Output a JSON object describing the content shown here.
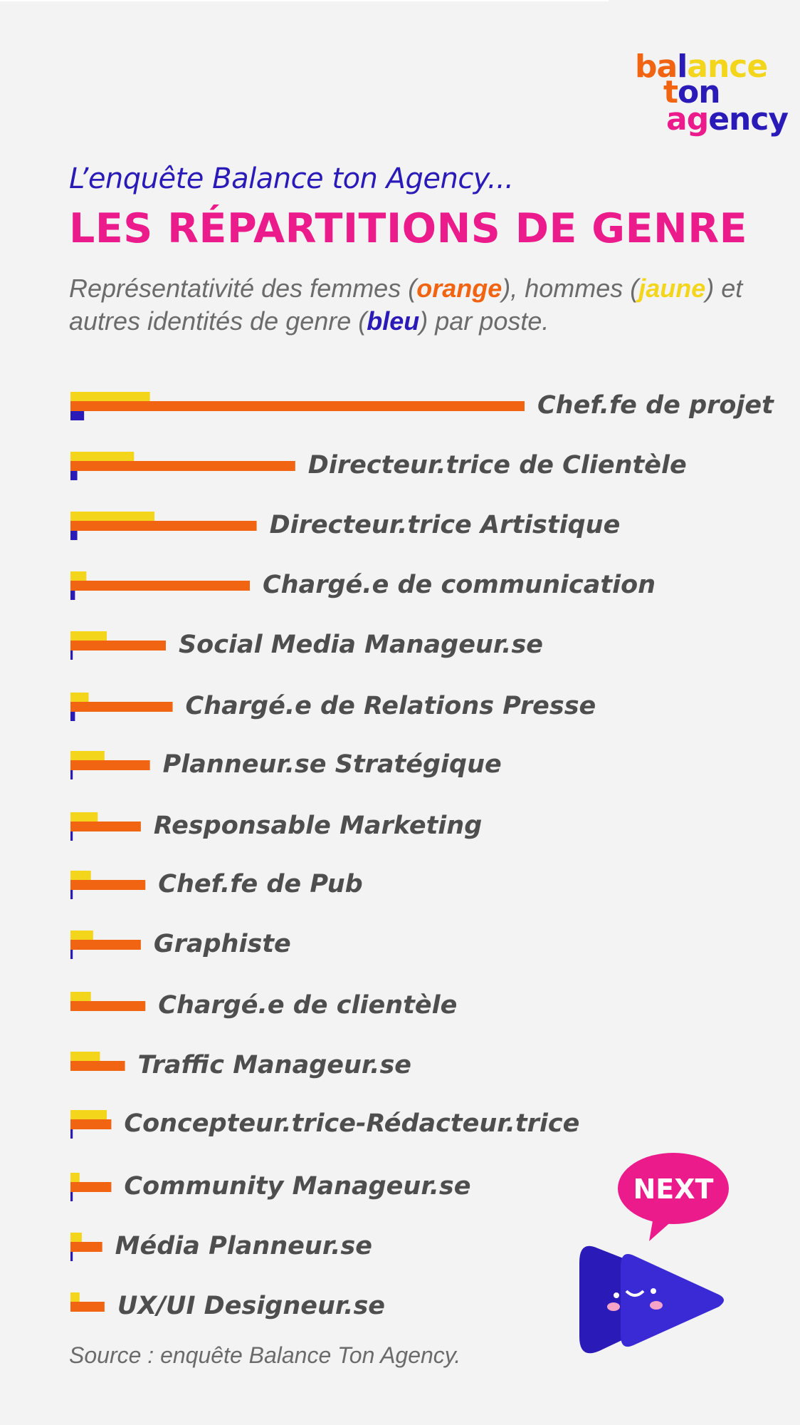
{
  "logo": {
    "lines": [
      "balance",
      "ton",
      "agency"
    ],
    "colors": {
      "orange": "#f06412",
      "yellow": "#f3d61c",
      "blue": "#2a1bb8",
      "pink": "#ec1b8c"
    }
  },
  "header": {
    "subtitle": "L’enquête Balance ton Agency...",
    "title": "LES RÉPARTITIONS DE GENRE",
    "description_parts": [
      "Représentativité des femmes (",
      "orange",
      "), hommes (",
      "jaune",
      ") et autres identités de genre (",
      "bleu",
      ") par poste."
    ]
  },
  "chart_data": {
    "type": "bar",
    "orientation": "horizontal",
    "series": [
      {
        "name": "femmes",
        "color": "#f06412"
      },
      {
        "name": "hommes",
        "color": "#f3d61c"
      },
      {
        "name": "autres identités de genre",
        "color": "#2a1bb8"
      }
    ],
    "categories": [
      "Chef.fe de projet",
      "Directeur.trice de Clientèle",
      "Directeur.trice Artistique",
      "Chargé.e de communication",
      "Social Media Manageur.se",
      "Chargé.e de Relations Presse",
      "Planneur.se Stratégique",
      "Responsable Marketing",
      "Chef.fe de Pub",
      "Graphiste",
      "Chargé.e de clientèle",
      "Traffic Manageur.se",
      "Concepteur.trice-Rédacteur.trice",
      "Community Manageur.se",
      "Média Planneur.se",
      "UX/UI Designeur.se"
    ],
    "values_femmes": [
      100,
      49.5,
      41,
      39.5,
      21,
      22.5,
      17.5,
      15.5,
      16.5,
      15.5,
      16.5,
      12,
      9,
      9,
      7,
      7.5
    ],
    "values_hommes": [
      17.5,
      14,
      18.5,
      3.5,
      8,
      4,
      7.5,
      6,
      4.5,
      5,
      4.5,
      6.5,
      8,
      2,
      2.5,
      2
    ],
    "values_autres": [
      3,
      1.5,
      1.5,
      1,
      0.5,
      1,
      0.5,
      0.5,
      0.5,
      0.5,
      0,
      0,
      0.5,
      0.5,
      0.5,
      0
    ]
  },
  "source": "Source : enquête Balance Ton Agency.",
  "next_button": {
    "label": "NEXT"
  }
}
